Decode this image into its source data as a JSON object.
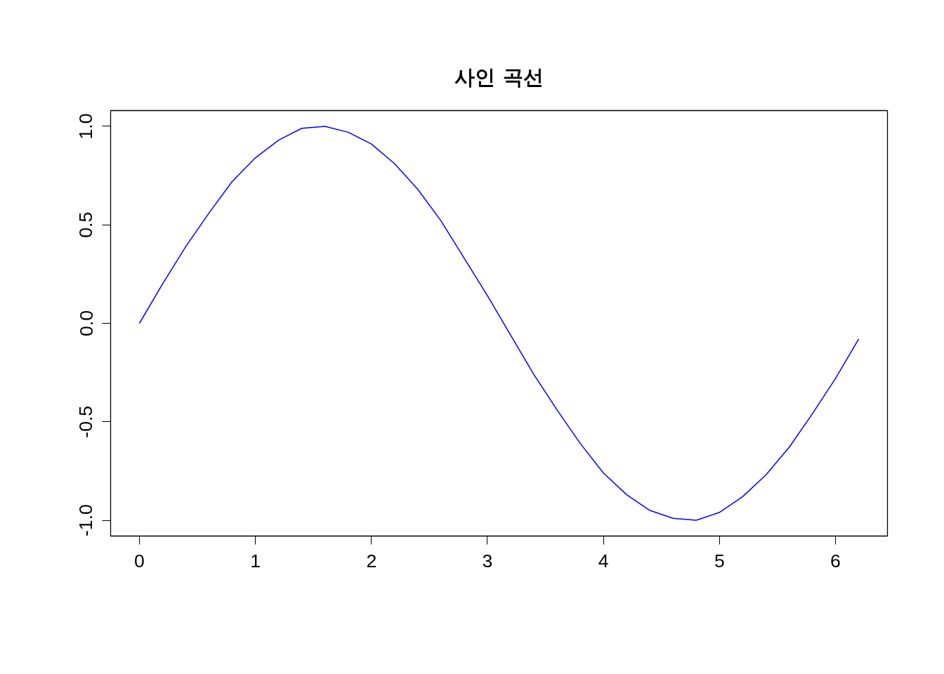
{
  "chart_data": {
    "type": "line",
    "title": "사인 곡선",
    "x": [
      0,
      0.2,
      0.4,
      0.6,
      0.8,
      1.0,
      1.2,
      1.4,
      1.6,
      1.8,
      2.0,
      2.2,
      2.4,
      2.6,
      2.8,
      3.0,
      3.2,
      3.4,
      3.6,
      3.8,
      4.0,
      4.2,
      4.4,
      4.6,
      4.8,
      5.0,
      5.2,
      5.4,
      5.6,
      5.8,
      6.0,
      6.2
    ],
    "series": [
      {
        "color": "#0000ff",
        "values": [
          0,
          0.2,
          0.39,
          0.56,
          0.72,
          0.84,
          0.93,
          0.99,
          1.0,
          0.97,
          0.91,
          0.81,
          0.68,
          0.52,
          0.33,
          0.14,
          -0.06,
          -0.26,
          -0.44,
          -0.61,
          -0.76,
          -0.87,
          -0.95,
          -0.99,
          -1.0,
          -0.96,
          -0.88,
          -0.77,
          -0.63,
          -0.46,
          -0.28,
          -0.08
        ]
      }
    ],
    "xlim": [
      -0.248,
      6.448
    ],
    "ylim": [
      -1.08,
      1.08
    ],
    "xticks": [
      0,
      1,
      2,
      3,
      4,
      5,
      6
    ],
    "yticks": [
      {
        "value": -1,
        "label": "-1.0"
      },
      {
        "value": -0.5,
        "label": "-0.5"
      },
      {
        "value": 0,
        "label": "0.0"
      },
      {
        "value": 0.5,
        "label": "0.5"
      },
      {
        "value": 1,
        "label": "1.0"
      }
    ],
    "grid": false,
    "marker": "none",
    "line_style": "solid"
  }
}
